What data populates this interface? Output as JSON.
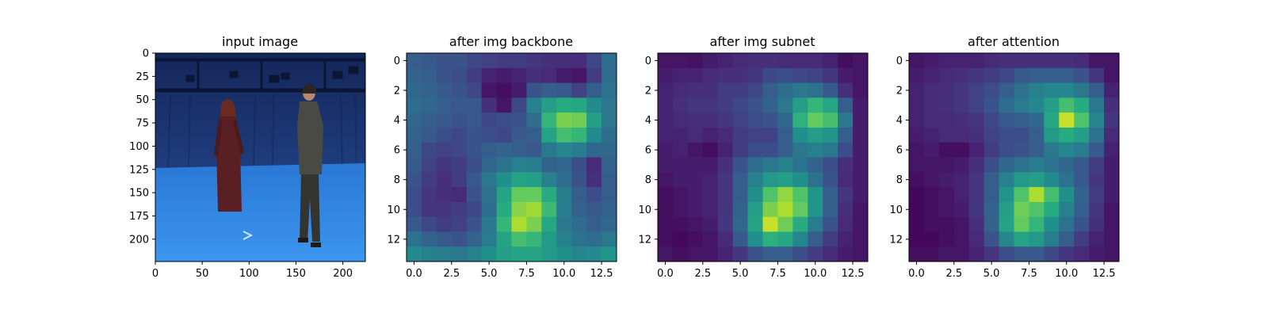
{
  "chart_data": [
    {
      "type": "image",
      "title": "input image",
      "xlim": [
        0,
        224
      ],
      "ylim": [
        224,
        0
      ],
      "xticks": [
        0,
        50,
        100,
        150,
        200
      ],
      "yticks": [
        0,
        25,
        50,
        75,
        100,
        125,
        150,
        175,
        200
      ],
      "xtick_labels": [
        "0",
        "50",
        "100",
        "150",
        "200"
      ],
      "ytick_labels": [
        "0",
        "25",
        "50",
        "75",
        "100",
        "125",
        "150",
        "175",
        "200"
      ],
      "image_description": "motion capture studio with blue backdrop and floor, two people standing facing each other",
      "colors": {
        "wall": "#1f3a7a",
        "floor": "#2f86e3",
        "rig": "#0e1a3a"
      }
    },
    {
      "type": "heatmap",
      "title": "after img backbone",
      "colormap": "viridis",
      "xlim": [
        -0.5,
        13.5
      ],
      "ylim": [
        13.5,
        -0.5
      ],
      "xticks": [
        0,
        2.5,
        5,
        7.5,
        10,
        12.5
      ],
      "xtick_labels": [
        "0.0",
        "2.5",
        "5.0",
        "7.5",
        "10.0",
        "12.5"
      ],
      "yticks": [
        0,
        2,
        4,
        6,
        8,
        10,
        12
      ],
      "ytick_labels": [
        "0",
        "2",
        "4",
        "6",
        "8",
        "10",
        "12"
      ],
      "values": [
        [
          0.3,
          0.28,
          0.26,
          0.26,
          0.22,
          0.2,
          0.18,
          0.18,
          0.16,
          0.14,
          0.14,
          0.13,
          0.22,
          0.36
        ],
        [
          0.32,
          0.3,
          0.26,
          0.24,
          0.18,
          0.1,
          0.08,
          0.1,
          0.14,
          0.12,
          0.08,
          0.06,
          0.18,
          0.36
        ],
        [
          0.34,
          0.32,
          0.28,
          0.26,
          0.22,
          0.06,
          0.04,
          0.08,
          0.26,
          0.3,
          0.28,
          0.2,
          0.3,
          0.38
        ],
        [
          0.36,
          0.34,
          0.3,
          0.28,
          0.28,
          0.14,
          0.06,
          0.22,
          0.44,
          0.56,
          0.62,
          0.6,
          0.48,
          0.4
        ],
        [
          0.34,
          0.3,
          0.28,
          0.26,
          0.28,
          0.22,
          0.24,
          0.26,
          0.36,
          0.66,
          0.8,
          0.78,
          0.56,
          0.4
        ],
        [
          0.32,
          0.28,
          0.24,
          0.22,
          0.26,
          0.24,
          0.22,
          0.28,
          0.3,
          0.58,
          0.7,
          0.66,
          0.48,
          0.36
        ],
        [
          0.3,
          0.22,
          0.2,
          0.22,
          0.26,
          0.3,
          0.32,
          0.3,
          0.28,
          0.4,
          0.46,
          0.42,
          0.34,
          0.34
        ],
        [
          0.28,
          0.2,
          0.16,
          0.18,
          0.24,
          0.34,
          0.38,
          0.44,
          0.42,
          0.32,
          0.34,
          0.24,
          0.12,
          0.32
        ],
        [
          0.26,
          0.18,
          0.14,
          0.18,
          0.28,
          0.4,
          0.5,
          0.58,
          0.56,
          0.44,
          0.36,
          0.26,
          0.14,
          0.3
        ],
        [
          0.24,
          0.16,
          0.14,
          0.12,
          0.26,
          0.38,
          0.58,
          0.76,
          0.76,
          0.62,
          0.42,
          0.3,
          0.24,
          0.3
        ],
        [
          0.24,
          0.16,
          0.16,
          0.18,
          0.22,
          0.36,
          0.62,
          0.82,
          0.86,
          0.68,
          0.42,
          0.32,
          0.28,
          0.32
        ],
        [
          0.28,
          0.22,
          0.18,
          0.2,
          0.26,
          0.4,
          0.66,
          0.88,
          0.8,
          0.6,
          0.4,
          0.36,
          0.3,
          0.34
        ],
        [
          0.38,
          0.32,
          0.28,
          0.26,
          0.32,
          0.42,
          0.58,
          0.7,
          0.66,
          0.54,
          0.44,
          0.38,
          0.36,
          0.4
        ],
        [
          0.48,
          0.44,
          0.42,
          0.4,
          0.44,
          0.5,
          0.56,
          0.58,
          0.58,
          0.54,
          0.5,
          0.46,
          0.48,
          0.52
        ]
      ]
    },
    {
      "type": "heatmap",
      "title": "after img subnet",
      "colormap": "viridis",
      "xlim": [
        -0.5,
        13.5
      ],
      "ylim": [
        13.5,
        -0.5
      ],
      "xticks": [
        0,
        2.5,
        5,
        7.5,
        10,
        12.5
      ],
      "xtick_labels": [
        "0.0",
        "2.5",
        "5.0",
        "7.5",
        "10.0",
        "12.5"
      ],
      "yticks": [
        0,
        2,
        4,
        6,
        8,
        10,
        12
      ],
      "ytick_labels": [
        "0",
        "2",
        "4",
        "6",
        "8",
        "10",
        "12"
      ],
      "values": [
        [
          0.06,
          0.06,
          0.05,
          0.08,
          0.1,
          0.12,
          0.14,
          0.14,
          0.12,
          0.12,
          0.12,
          0.1,
          0.04,
          0.06
        ],
        [
          0.08,
          0.1,
          0.1,
          0.12,
          0.14,
          0.14,
          0.16,
          0.22,
          0.24,
          0.22,
          0.2,
          0.16,
          0.08,
          0.06
        ],
        [
          0.1,
          0.12,
          0.14,
          0.14,
          0.18,
          0.18,
          0.22,
          0.3,
          0.36,
          0.4,
          0.38,
          0.28,
          0.14,
          0.06
        ],
        [
          0.1,
          0.14,
          0.16,
          0.16,
          0.18,
          0.22,
          0.26,
          0.32,
          0.4,
          0.56,
          0.66,
          0.6,
          0.3,
          0.08
        ],
        [
          0.1,
          0.12,
          0.14,
          0.14,
          0.16,
          0.2,
          0.24,
          0.26,
          0.34,
          0.64,
          0.76,
          0.7,
          0.4,
          0.08
        ],
        [
          0.1,
          0.1,
          0.12,
          0.1,
          0.12,
          0.18,
          0.2,
          0.2,
          0.3,
          0.5,
          0.56,
          0.52,
          0.3,
          0.08
        ],
        [
          0.08,
          0.1,
          0.06,
          0.04,
          0.1,
          0.18,
          0.24,
          0.24,
          0.3,
          0.4,
          0.44,
          0.4,
          0.24,
          0.08
        ],
        [
          0.08,
          0.08,
          0.08,
          0.08,
          0.14,
          0.26,
          0.36,
          0.4,
          0.44,
          0.38,
          0.32,
          0.24,
          0.14,
          0.08
        ],
        [
          0.06,
          0.08,
          0.08,
          0.1,
          0.16,
          0.3,
          0.44,
          0.54,
          0.56,
          0.5,
          0.38,
          0.26,
          0.12,
          0.08
        ],
        [
          0.04,
          0.06,
          0.08,
          0.1,
          0.16,
          0.3,
          0.5,
          0.72,
          0.84,
          0.72,
          0.52,
          0.3,
          0.16,
          0.08
        ],
        [
          0.04,
          0.06,
          0.08,
          0.1,
          0.16,
          0.32,
          0.56,
          0.8,
          0.88,
          0.76,
          0.52,
          0.3,
          0.14,
          0.06
        ],
        [
          0.04,
          0.04,
          0.06,
          0.08,
          0.16,
          0.34,
          0.58,
          0.92,
          0.78,
          0.62,
          0.42,
          0.26,
          0.12,
          0.06
        ],
        [
          0.04,
          0.02,
          0.04,
          0.06,
          0.12,
          0.28,
          0.5,
          0.64,
          0.6,
          0.46,
          0.3,
          0.18,
          0.1,
          0.06
        ],
        [
          0.06,
          0.04,
          0.06,
          0.06,
          0.1,
          0.16,
          0.26,
          0.3,
          0.3,
          0.24,
          0.18,
          0.12,
          0.08,
          0.06
        ]
      ]
    },
    {
      "type": "heatmap",
      "title": "after attention",
      "colormap": "viridis",
      "xlim": [
        -0.5,
        13.5
      ],
      "ylim": [
        13.5,
        -0.5
      ],
      "xticks": [
        0,
        2.5,
        5,
        7.5,
        10,
        12.5
      ],
      "xtick_labels": [
        "0.0",
        "2.5",
        "5.0",
        "7.5",
        "10.0",
        "12.5"
      ],
      "yticks": [
        0,
        2,
        4,
        6,
        8,
        10,
        12
      ],
      "ytick_labels": [
        "0",
        "2",
        "4",
        "6",
        "8",
        "10",
        "12"
      ],
      "values": [
        [
          0.06,
          0.08,
          0.1,
          0.1,
          0.1,
          0.12,
          0.14,
          0.14,
          0.14,
          0.14,
          0.14,
          0.12,
          0.06,
          0.06
        ],
        [
          0.08,
          0.1,
          0.12,
          0.14,
          0.16,
          0.18,
          0.22,
          0.28,
          0.3,
          0.3,
          0.3,
          0.26,
          0.16,
          0.06
        ],
        [
          0.1,
          0.12,
          0.14,
          0.16,
          0.2,
          0.24,
          0.3,
          0.38,
          0.44,
          0.46,
          0.46,
          0.4,
          0.3,
          0.1
        ],
        [
          0.1,
          0.12,
          0.14,
          0.16,
          0.2,
          0.26,
          0.36,
          0.42,
          0.46,
          0.56,
          0.7,
          0.62,
          0.4,
          0.14
        ],
        [
          0.1,
          0.12,
          0.12,
          0.14,
          0.16,
          0.22,
          0.28,
          0.3,
          0.34,
          0.6,
          0.92,
          0.72,
          0.46,
          0.16
        ],
        [
          0.08,
          0.1,
          0.12,
          0.12,
          0.14,
          0.2,
          0.24,
          0.24,
          0.3,
          0.54,
          0.62,
          0.56,
          0.38,
          0.12
        ],
        [
          0.06,
          0.08,
          0.04,
          0.04,
          0.1,
          0.18,
          0.24,
          0.26,
          0.3,
          0.4,
          0.46,
          0.42,
          0.28,
          0.1
        ],
        [
          0.06,
          0.06,
          0.06,
          0.08,
          0.14,
          0.24,
          0.34,
          0.38,
          0.42,
          0.38,
          0.34,
          0.28,
          0.18,
          0.08
        ],
        [
          0.04,
          0.06,
          0.08,
          0.1,
          0.16,
          0.3,
          0.44,
          0.54,
          0.56,
          0.48,
          0.38,
          0.28,
          0.16,
          0.08
        ],
        [
          0.02,
          0.04,
          0.06,
          0.1,
          0.16,
          0.3,
          0.52,
          0.72,
          0.88,
          0.7,
          0.5,
          0.32,
          0.18,
          0.08
        ],
        [
          0.02,
          0.04,
          0.06,
          0.08,
          0.16,
          0.32,
          0.56,
          0.78,
          0.72,
          0.62,
          0.44,
          0.3,
          0.16,
          0.06
        ],
        [
          0.02,
          0.04,
          0.04,
          0.06,
          0.14,
          0.32,
          0.58,
          0.76,
          0.66,
          0.5,
          0.38,
          0.26,
          0.14,
          0.06
        ],
        [
          0.02,
          0.02,
          0.04,
          0.06,
          0.12,
          0.26,
          0.46,
          0.58,
          0.54,
          0.42,
          0.3,
          0.18,
          0.1,
          0.06
        ],
        [
          0.04,
          0.04,
          0.06,
          0.06,
          0.1,
          0.16,
          0.24,
          0.28,
          0.28,
          0.22,
          0.16,
          0.12,
          0.08,
          0.06
        ]
      ]
    }
  ]
}
